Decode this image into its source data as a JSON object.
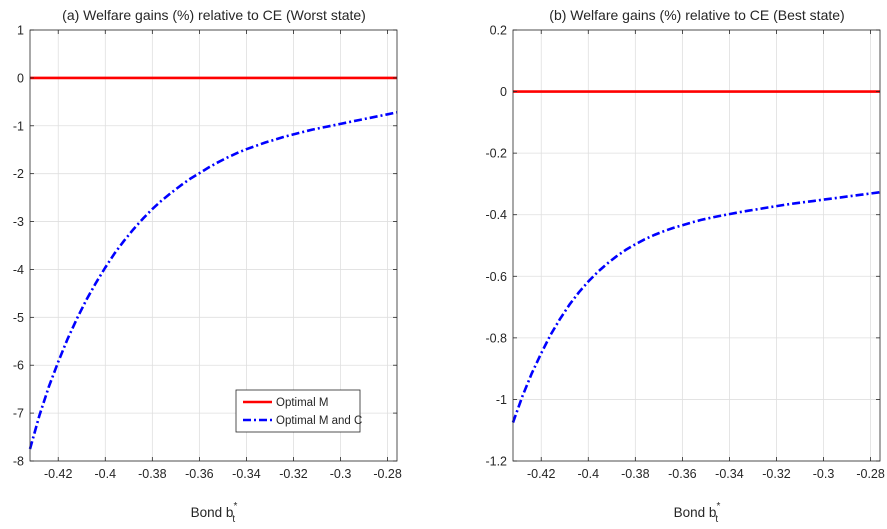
{
  "chart_data": [
    {
      "type": "line",
      "title": "(a) Welfare gains (%) relative to CE (Worst state)",
      "xlabel": "Bond b",
      "xlabel_sup": "*",
      "xlabel_sub": "t",
      "ylabel": "",
      "xlim": [
        -0.432,
        -0.276
      ],
      "ylim": [
        -8,
        1
      ],
      "xticks": [
        -0.42,
        -0.4,
        -0.38,
        -0.36,
        -0.34,
        -0.32,
        -0.3,
        -0.28
      ],
      "xtick_labels": [
        "-0.42",
        "-0.4",
        "-0.38",
        "-0.36",
        "-0.34",
        "-0.32",
        "-0.3",
        "-0.28"
      ],
      "yticks": [
        1,
        0,
        -1,
        -2,
        -3,
        -4,
        -5,
        -6,
        -7,
        -8
      ],
      "ytick_labels": [
        "1",
        "0",
        "-1",
        "-2",
        "-3",
        "-4",
        "-5",
        "-6",
        "-7",
        "-8"
      ],
      "grid": true,
      "legend": {
        "position": "bottom-right",
        "entries": [
          "Optimal M",
          "Optimal M and C"
        ]
      },
      "series": [
        {
          "name": "Optimal M",
          "color": "#ff0000",
          "dash": "solid",
          "x": [
            -0.432,
            -0.276
          ],
          "y": [
            0,
            0
          ]
        },
        {
          "name": "Optimal M and C",
          "color": "#0000ff",
          "dash": "dashdot",
          "x": [
            -0.432,
            -0.428,
            -0.424,
            -0.42,
            -0.416,
            -0.412,
            -0.408,
            -0.404,
            -0.4,
            -0.396,
            -0.392,
            -0.388,
            -0.384,
            -0.38,
            -0.376,
            -0.372,
            -0.368,
            -0.364,
            -0.36,
            -0.356,
            -0.352,
            -0.348,
            -0.344,
            -0.34,
            -0.336,
            -0.332,
            -0.328,
            -0.324,
            -0.32,
            -0.316,
            -0.312,
            -0.308,
            -0.304,
            -0.3,
            -0.296,
            -0.292,
            -0.288,
            -0.284,
            -0.28,
            -0.276
          ],
          "y": [
            -7.75,
            -7.05,
            -6.45,
            -5.93,
            -5.45,
            -5.02,
            -4.63,
            -4.28,
            -3.96,
            -3.66,
            -3.4,
            -3.16,
            -2.94,
            -2.74,
            -2.56,
            -2.4,
            -2.25,
            -2.11,
            -1.99,
            -1.87,
            -1.76,
            -1.66,
            -1.57,
            -1.49,
            -1.42,
            -1.35,
            -1.29,
            -1.23,
            -1.18,
            -1.13,
            -1.08,
            -1.04,
            -1.0,
            -0.96,
            -0.92,
            -0.88,
            -0.84,
            -0.8,
            -0.76,
            -0.72
          ]
        }
      ]
    },
    {
      "type": "line",
      "title": "(b) Welfare gains (%) relative to CE (Best state)",
      "xlabel": "Bond b",
      "xlabel_sup": "*",
      "xlabel_sub": "t",
      "ylabel": "",
      "xlim": [
        -0.432,
        -0.276
      ],
      "ylim": [
        -1.2,
        0.2
      ],
      "xticks": [
        -0.42,
        -0.4,
        -0.38,
        -0.36,
        -0.34,
        -0.32,
        -0.3,
        -0.28
      ],
      "xtick_labels": [
        "-0.42",
        "-0.4",
        "-0.38",
        "-0.36",
        "-0.34",
        "-0.32",
        "-0.3",
        "-0.28"
      ],
      "yticks": [
        0.2,
        0,
        -0.2,
        -0.4,
        -0.6,
        -0.8,
        -1,
        -1.2
      ],
      "ytick_labels": [
        "0.2",
        "0",
        "-0.2",
        "-0.4",
        "-0.6",
        "-0.8",
        "-1",
        "-1.2"
      ],
      "grid": true,
      "legend": null,
      "series": [
        {
          "name": "Optimal M",
          "color": "#ff0000",
          "dash": "solid",
          "x": [
            -0.432,
            -0.276
          ],
          "y": [
            0,
            0
          ]
        },
        {
          "name": "Optimal M and C",
          "color": "#0000ff",
          "dash": "dashdot",
          "x": [
            -0.432,
            -0.428,
            -0.424,
            -0.42,
            -0.416,
            -0.412,
            -0.408,
            -0.404,
            -0.4,
            -0.396,
            -0.392,
            -0.388,
            -0.384,
            -0.38,
            -0.376,
            -0.372,
            -0.368,
            -0.364,
            -0.36,
            -0.356,
            -0.352,
            -0.348,
            -0.344,
            -0.34,
            -0.336,
            -0.332,
            -0.328,
            -0.324,
            -0.32,
            -0.316,
            -0.312,
            -0.308,
            -0.304,
            -0.3,
            -0.296,
            -0.292,
            -0.288,
            -0.284,
            -0.28,
            -0.276
          ],
          "y": [
            -1.075,
            -0.99,
            -0.915,
            -0.85,
            -0.79,
            -0.738,
            -0.692,
            -0.652,
            -0.617,
            -0.586,
            -0.559,
            -0.535,
            -0.514,
            -0.496,
            -0.48,
            -0.466,
            -0.454,
            -0.443,
            -0.434,
            -0.425,
            -0.417,
            -0.41,
            -0.404,
            -0.398,
            -0.392,
            -0.387,
            -0.382,
            -0.377,
            -0.372,
            -0.367,
            -0.363,
            -0.359,
            -0.355,
            -0.351,
            -0.347,
            -0.343,
            -0.339,
            -0.335,
            -0.331,
            -0.327
          ]
        }
      ]
    }
  ]
}
